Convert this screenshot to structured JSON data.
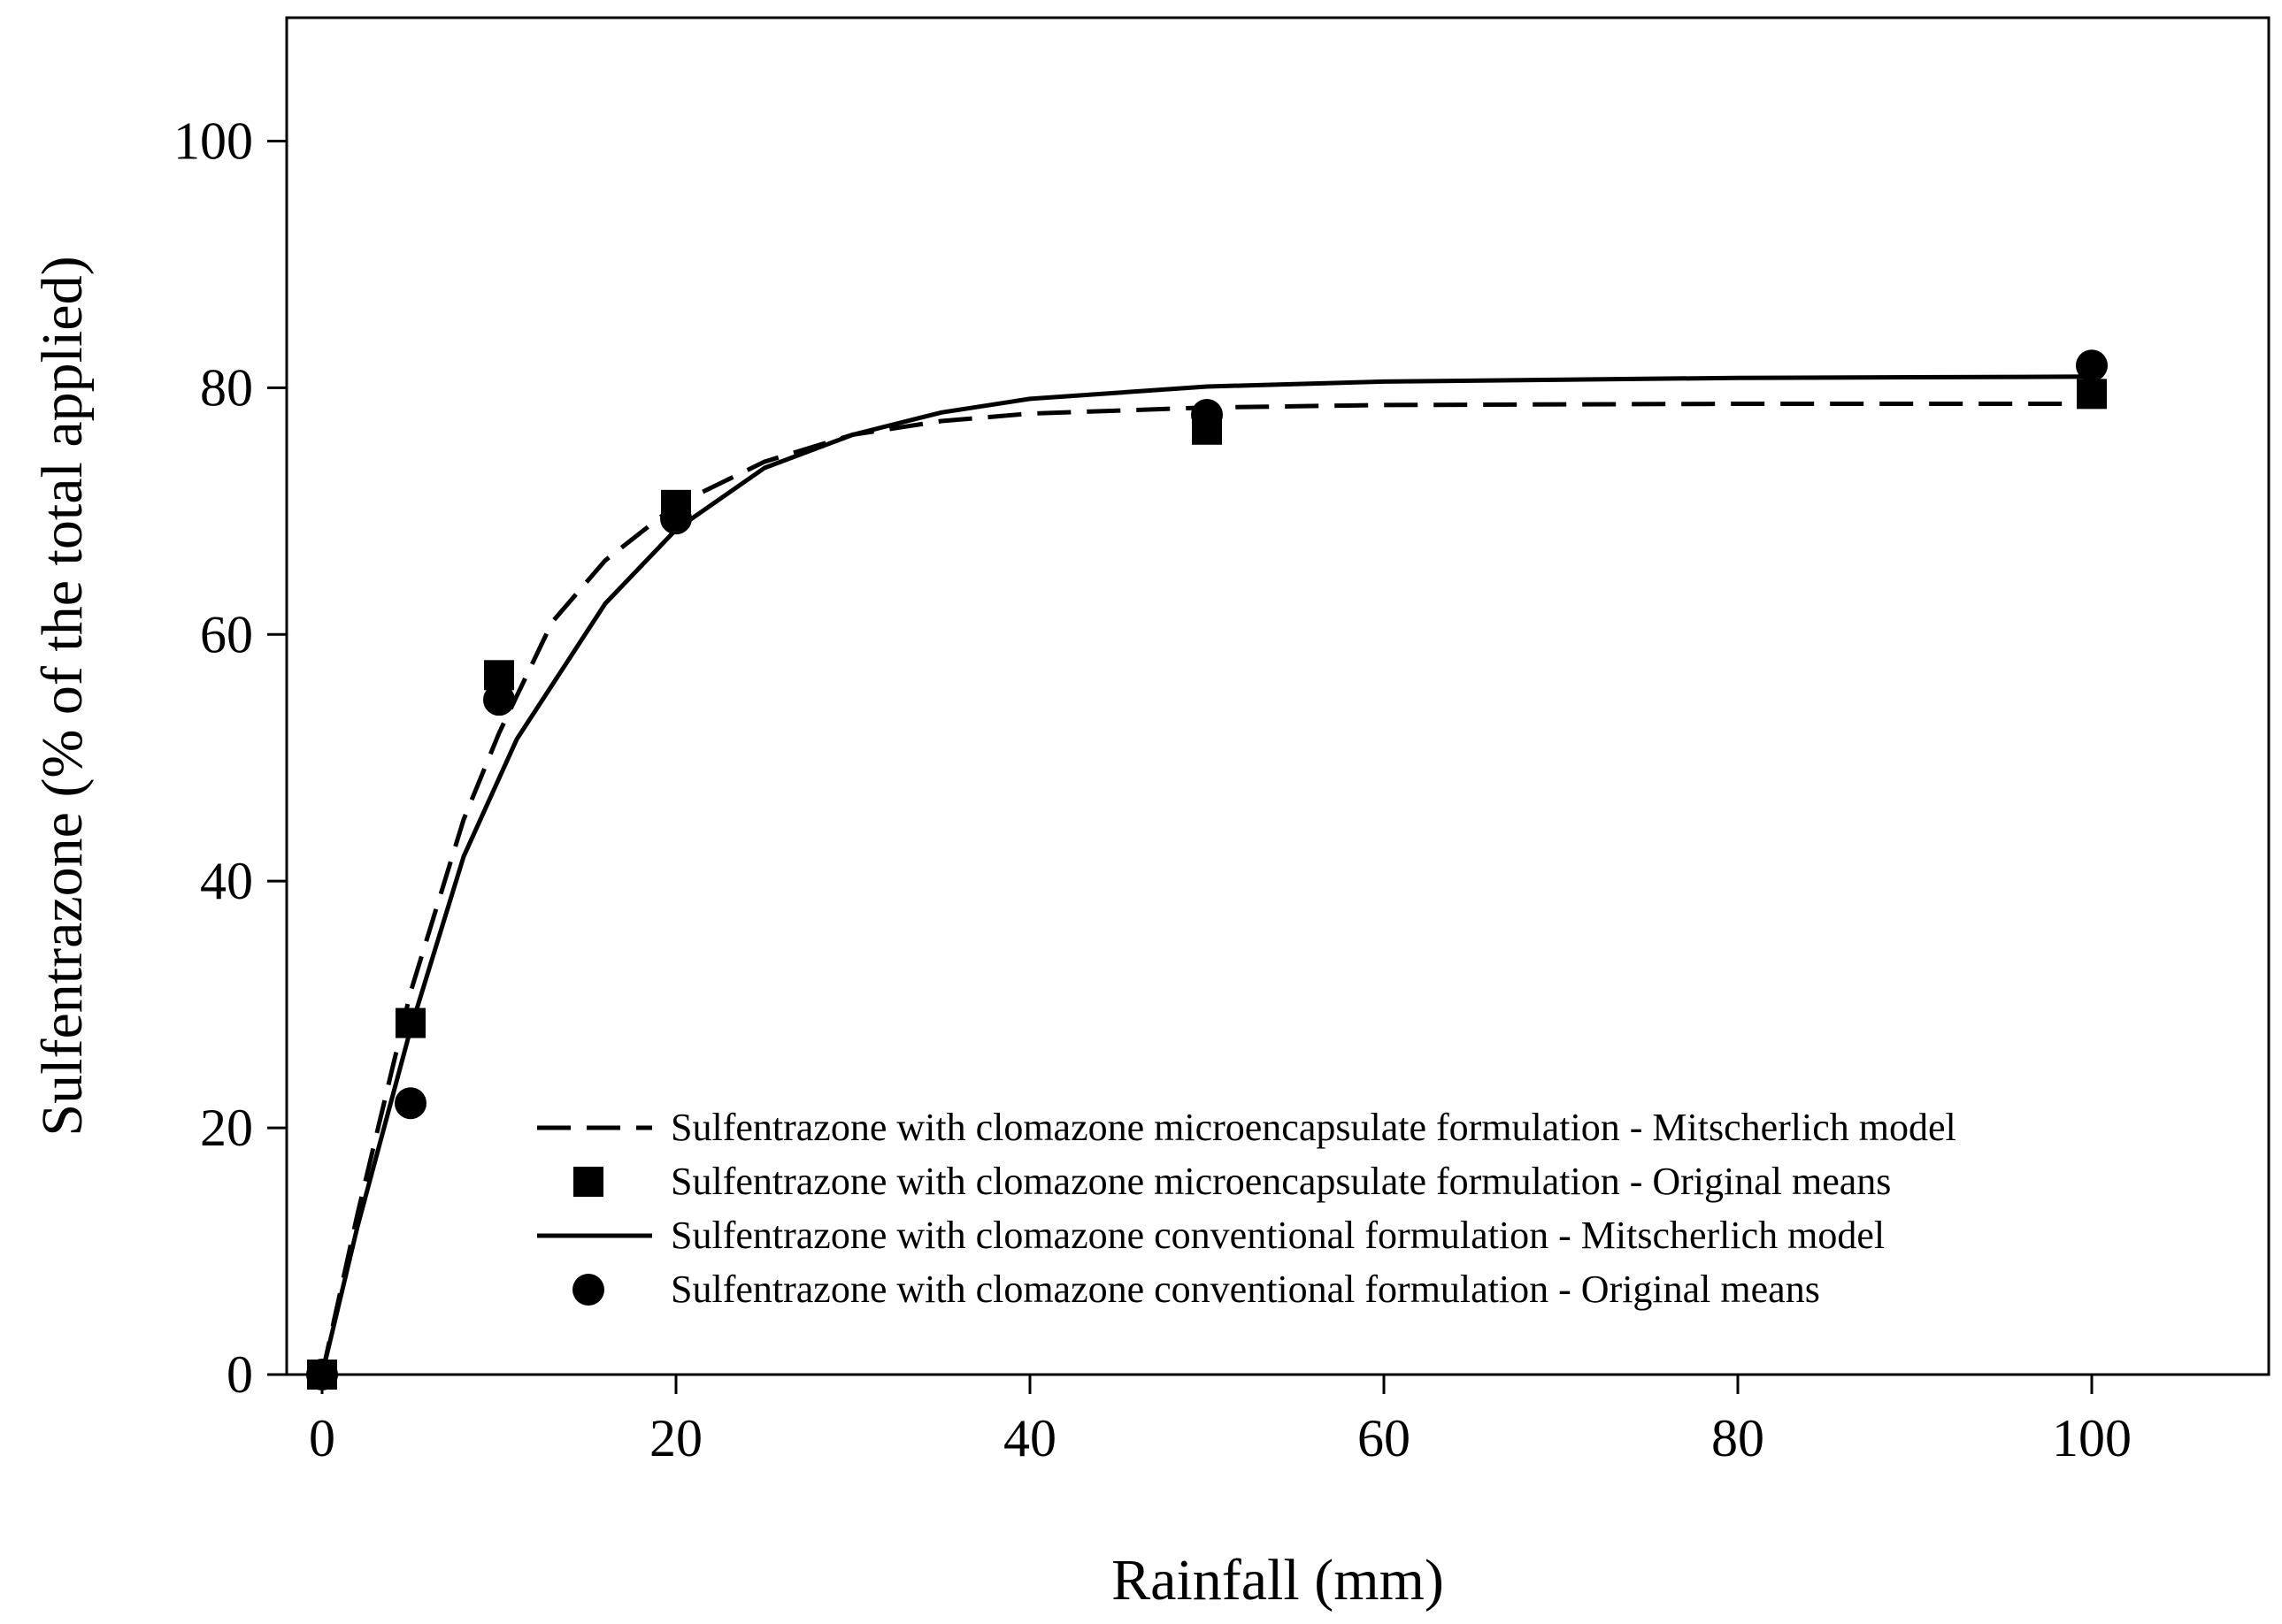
{
  "chart_data": {
    "type": "scatter",
    "title": "",
    "xlabel": "Rainfall (mm)",
    "ylabel": "Sulfentrazone (% of the total applied)",
    "xlim": [
      -2,
      110
    ],
    "ylim": [
      0,
      110
    ],
    "x_ticks": [
      0,
      20,
      40,
      60,
      80,
      100
    ],
    "y_ticks": [
      0,
      20,
      40,
      60,
      80,
      100
    ],
    "grid": false,
    "legend_position": "bottom-right",
    "series": [
      {
        "name": "Sulfentrazone with clomazone microencapsulate formulation - Mitscherlich model",
        "kind": "line",
        "style": "dashed",
        "color": "#000000",
        "x": [
          0,
          2,
          5,
          8,
          10,
          13,
          16,
          20,
          25,
          30,
          35,
          40,
          50,
          60,
          80,
          100
        ],
        "y": [
          0,
          13,
          31,
          45,
          52,
          61,
          66,
          70.5,
          74,
          76.2,
          77.3,
          77.9,
          78.4,
          78.6,
          78.7,
          78.7
        ]
      },
      {
        "name": "Sulfentrazone with clomazone microencapsulate formulation - Original means",
        "kind": "points",
        "marker": "square",
        "color": "#000000",
        "x": [
          0,
          5,
          10,
          20,
          50,
          100
        ],
        "y": [
          0,
          28.5,
          56.7,
          70.5,
          76.6,
          79.5
        ]
      },
      {
        "name": "Sulfentrazone with clomazone conventional formulation - Mitscherlich model",
        "kind": "line",
        "style": "solid",
        "color": "#000000",
        "x": [
          0,
          2,
          5,
          8,
          11,
          16,
          20,
          25,
          30,
          35,
          40,
          50,
          60,
          80,
          100
        ],
        "y": [
          0,
          12,
          28,
          42,
          51.5,
          62.5,
          68.5,
          73.5,
          76.2,
          78,
          79.1,
          80.1,
          80.5,
          80.8,
          80.9
        ]
      },
      {
        "name": "Sulfentrazone with clomazone conventional formulation - Original means",
        "kind": "points",
        "marker": "circle",
        "color": "#000000",
        "x": [
          0,
          5,
          10,
          20,
          50,
          100
        ],
        "y": [
          0,
          22,
          54.7,
          69.4,
          77.8,
          81.8
        ]
      }
    ]
  }
}
